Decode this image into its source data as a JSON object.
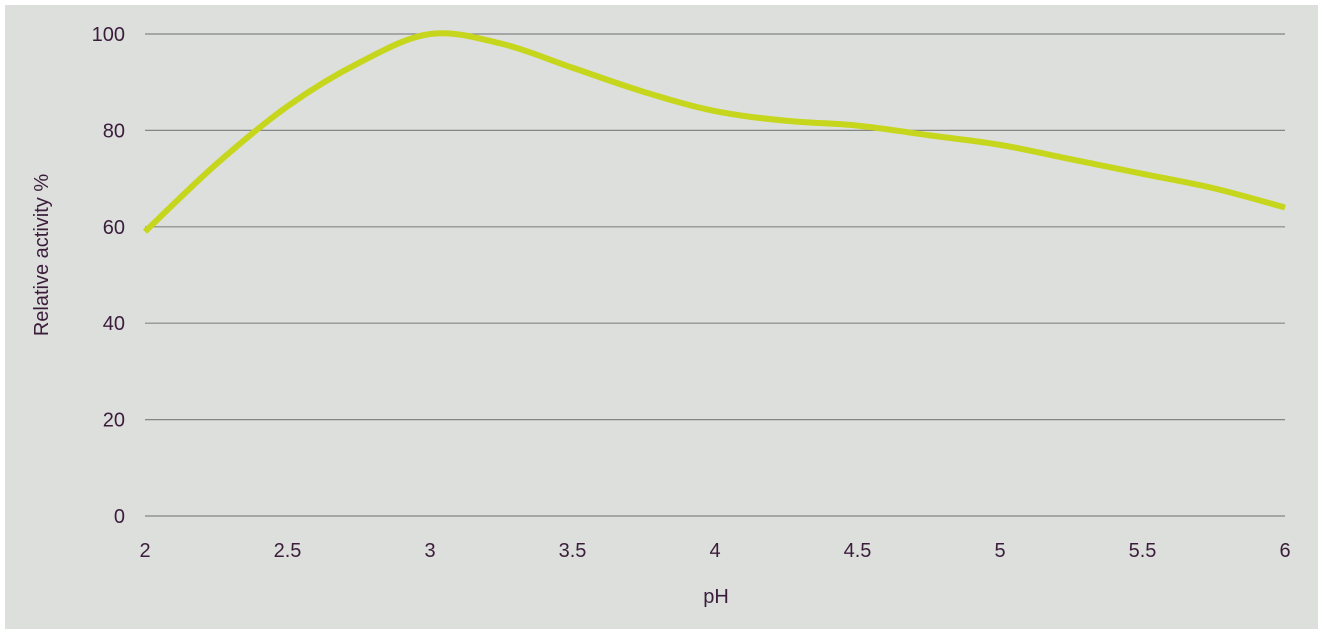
{
  "chart_data": {
    "type": "line",
    "title": "",
    "xlabel": "pH",
    "ylabel": "Relative activity %",
    "x_ticks": [
      "2",
      "2.5",
      "3",
      "3.5",
      "4",
      "4.5",
      "5",
      "5.5",
      "6"
    ],
    "y_ticks": [
      "0",
      "20",
      "40",
      "60",
      "80",
      "100"
    ],
    "xlim": [
      2,
      6
    ],
    "ylim": [
      0,
      100
    ],
    "grid": true,
    "legend": "none",
    "colors": {
      "background": "#dcdfdc",
      "line": "#c6d61c",
      "grid": "#858585",
      "text": "#3b1d3b"
    },
    "series": [
      {
        "x": [
          2,
          2.25,
          2.5,
          2.75,
          3,
          3.25,
          3.5,
          3.75,
          4,
          4.25,
          4.5,
          4.75,
          5,
          5.25,
          5.5,
          5.75,
          6
        ],
        "y": [
          59,
          73,
          85,
          94,
          100,
          98,
          93,
          88,
          84,
          82,
          81,
          79,
          77,
          74,
          71,
          68,
          64
        ]
      }
    ]
  }
}
